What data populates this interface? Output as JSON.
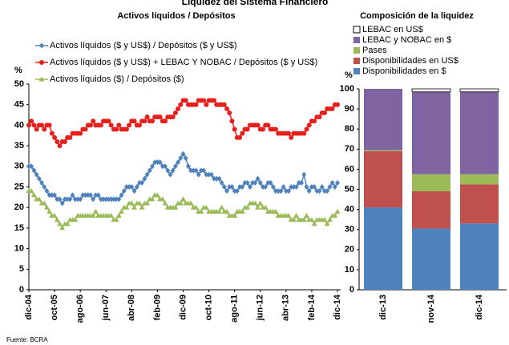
{
  "title": "Liquidez del Sistema Financiero",
  "source": "Fuente: BCRA",
  "chart_data": [
    {
      "type": "line",
      "title": "Activos líquidos / Depósitos",
      "ylabel": "%",
      "ylim": [
        0,
        50
      ],
      "yticks": [
        0,
        5,
        10,
        15,
        20,
        25,
        30,
        35,
        40,
        45,
        50
      ],
      "categories": [
        "dic-04",
        null,
        null,
        null,
        null,
        null,
        null,
        null,
        null,
        null,
        "oct-05",
        null,
        null,
        null,
        null,
        null,
        null,
        null,
        null,
        null,
        "ago-06",
        null,
        null,
        null,
        null,
        null,
        null,
        null,
        null,
        null,
        "jun-07",
        null,
        null,
        null,
        null,
        null,
        null,
        null,
        null,
        null,
        "abr-08",
        null,
        null,
        null,
        null,
        null,
        null,
        null,
        null,
        null,
        "feb-09",
        null,
        null,
        null,
        null,
        null,
        null,
        null,
        null,
        null,
        "dic-09",
        null,
        null,
        null,
        null,
        null,
        null,
        null,
        null,
        null,
        "oct-10",
        null,
        null,
        null,
        null,
        null,
        null,
        null,
        null,
        null,
        "ago-11",
        null,
        null,
        null,
        null,
        null,
        null,
        null,
        null,
        null,
        "jun-12",
        null,
        null,
        null,
        null,
        null,
        null,
        null,
        null,
        null,
        "abr-13",
        null,
        null,
        null,
        null,
        null,
        null,
        null,
        null,
        null,
        "feb-14",
        null,
        null,
        null,
        null,
        null,
        null,
        null,
        null,
        null,
        "dic-14"
      ],
      "series": [
        {
          "name": "Activos líquidos ($ y US$) / Depósitos ($ y US$)",
          "color": "#4f81bd",
          "marker": "diamond",
          "values": [
            30,
            30,
            29,
            28,
            27,
            26,
            25,
            24,
            23,
            23,
            23,
            22,
            22,
            21,
            22,
            22,
            22,
            23,
            22,
            22,
            22,
            23,
            23,
            23,
            23,
            22,
            23,
            23,
            22,
            22,
            22,
            22,
            22,
            22,
            22,
            22,
            23,
            24,
            25,
            25,
            25,
            24,
            25,
            26,
            26,
            27,
            28,
            29,
            30,
            31,
            31,
            31,
            30,
            30,
            29,
            28,
            29,
            30,
            31,
            32,
            33,
            32,
            30,
            29,
            29,
            29,
            28,
            29,
            29,
            28,
            28,
            28,
            27,
            27,
            27,
            26,
            25,
            24,
            25,
            25,
            24,
            24,
            25,
            25,
            26,
            26,
            25,
            26,
            26,
            27,
            26,
            25,
            25,
            26,
            26,
            25,
            24,
            24,
            24,
            25,
            24,
            24,
            25,
            25,
            25,
            26,
            26,
            28,
            25,
            24,
            25,
            25,
            24,
            24,
            25,
            24,
            24,
            25,
            26,
            25,
            26
          ]
        },
        {
          "name": "Activos líquidos ($ y US$) + LEBAC Y NOBAC / Depósitos ($ y US$)",
          "color": "#e8201c",
          "marker": "circle",
          "values": [
            40,
            41,
            40,
            39,
            40,
            40,
            39,
            40,
            40,
            38,
            37,
            36,
            35,
            36,
            36,
            37,
            37,
            38,
            38,
            38,
            38,
            39,
            39,
            40,
            40,
            41,
            40,
            40,
            40,
            41,
            41,
            41,
            40,
            39,
            39,
            40,
            39,
            39,
            39,
            40,
            41,
            41,
            40,
            40,
            41,
            41,
            42,
            41,
            41,
            42,
            42,
            42,
            41,
            41,
            42,
            42,
            42,
            43,
            44,
            45,
            46,
            46,
            45,
            45,
            45,
            45,
            46,
            46,
            46,
            45,
            46,
            46,
            46,
            45,
            45,
            45,
            45,
            44,
            43,
            41,
            39,
            37,
            37,
            38,
            39,
            39,
            40,
            40,
            40,
            40,
            39,
            39,
            40,
            40,
            39,
            39,
            39,
            38,
            38,
            38,
            38,
            38,
            37,
            38,
            38,
            38,
            38,
            38,
            39,
            40,
            41,
            41,
            42,
            42,
            43,
            43,
            44,
            44,
            44,
            45,
            45
          ]
        },
        {
          "name": "Activos líquidos ($) / Depósitos ($)",
          "color": "#9bbb59",
          "marker": "triangle",
          "values": [
            24,
            24,
            23,
            22,
            22,
            21,
            21,
            20,
            19,
            18,
            18,
            17,
            16,
            15,
            16,
            16,
            17,
            17,
            17,
            18,
            18,
            18,
            18,
            18,
            18,
            18,
            19,
            18,
            18,
            18,
            18,
            18,
            18,
            17,
            17,
            18,
            19,
            20,
            20,
            21,
            21,
            20,
            21,
            21,
            20,
            21,
            21,
            22,
            22,
            23,
            23,
            22,
            22,
            21,
            20,
            20,
            20,
            20,
            21,
            21,
            22,
            21,
            21,
            21,
            20,
            20,
            19,
            19,
            20,
            20,
            19,
            19,
            19,
            19,
            19,
            20,
            19,
            19,
            18,
            18,
            18,
            19,
            19,
            19,
            20,
            20,
            21,
            21,
            21,
            20,
            21,
            20,
            20,
            19,
            19,
            19,
            19,
            18,
            18,
            18,
            18,
            18,
            17,
            17,
            18,
            17,
            17,
            17,
            18,
            17,
            17,
            16,
            17,
            17,
            17,
            17,
            16,
            17,
            18,
            18,
            19
          ]
        }
      ]
    },
    {
      "type": "stacked_bar",
      "title": "Composición de la liquidez",
      "ylabel": "%",
      "ylim": [
        0,
        100
      ],
      "yticks": [
        0,
        10,
        20,
        30,
        40,
        50,
        60,
        70,
        80,
        90,
        100
      ],
      "categories": [
        "dic-13",
        "nov-14",
        "dic-14"
      ],
      "series": [
        {
          "name": "Disponibilidades en $",
          "color": "#4f81bd",
          "values": [
            41,
            30.5,
            33
          ]
        },
        {
          "name": "Disponibilidades en US$",
          "color": "#c0504d",
          "values": [
            28,
            18.5,
            19.5
          ]
        },
        {
          "name": "Pases",
          "color": "#9bbb59",
          "values": [
            0.5,
            8.5,
            5
          ]
        },
        {
          "name": "LEBAC y NOBAC en $",
          "color": "#8064a2",
          "values": [
            30.5,
            41,
            41
          ]
        },
        {
          "name": "LEBAC en US$",
          "color": "#ffffff",
          "values": [
            0,
            1.5,
            1.5
          ]
        }
      ]
    }
  ]
}
